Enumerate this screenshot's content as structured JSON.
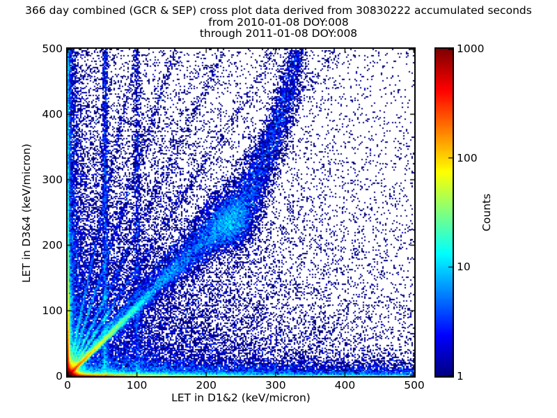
{
  "title": {
    "line1": "366 day combined (GCR & SEP) cross plot data derived from 30830222 accumulated seconds",
    "line2": "from 2010-01-08 DOY:008",
    "line3": "through 2011-01-08 DOY:008"
  },
  "chart_data": {
    "type": "heatmap",
    "subtype": "2d-histogram-density-cross-plot",
    "title": "366 day combined (GCR & SEP) cross plot data derived from 30830222 accumulated seconds",
    "subtitle1": "from 2010-01-08 DOY:008",
    "subtitle2": "through 2011-01-08 DOY:008",
    "xlabel": "LET in D1&2 (keV/micron)",
    "ylabel": "LET in D3&4 (keV/micron)",
    "xlim": [
      0,
      500
    ],
    "ylim": [
      0,
      500
    ],
    "xticks": [
      0,
      100,
      200,
      300,
      400,
      500
    ],
    "yticks": [
      0,
      100,
      200,
      300,
      400,
      500
    ],
    "grid": false,
    "colormap": "jet",
    "background": "#ffffff",
    "point_color_min": "#000080",
    "colorbar": {
      "label": "Counts",
      "scale": "log",
      "min": 1,
      "max": 1000,
      "ticks": [
        1,
        10,
        100,
        1000
      ],
      "position": "right"
    },
    "bins": 250,
    "seed": 20100108,
    "components": [
      {
        "name": "origin-core",
        "kind": "xy",
        "n": 30000,
        "x": {
          "dist": "exp",
          "scale": 4.5
        },
        "y": {
          "dist": "exp",
          "scale": 4.5
        }
      },
      {
        "name": "x-axis-hot-strip",
        "kind": "xy",
        "n": 15000,
        "x": {
          "dist": "exp",
          "scale": 60
        },
        "y": {
          "dist": "exp",
          "scale": 1.2
        }
      },
      {
        "name": "x-axis-thin-line",
        "kind": "xy",
        "n": 2200,
        "x": {
          "dist": "uniform",
          "min": 0,
          "max": 500
        },
        "y": {
          "dist": "exp",
          "scale": 1.0
        }
      },
      {
        "name": "y-axis-hot-strip",
        "kind": "xy",
        "n": 13000,
        "x": {
          "dist": "exp",
          "scale": 1.2
        },
        "y": {
          "dist": "exp",
          "scale": 55
        }
      },
      {
        "name": "y-axis-thin-line",
        "kind": "xy",
        "n": 1400,
        "x": {
          "dist": "exp",
          "scale": 1.0
        },
        "y": {
          "dist": "uniform",
          "min": 0,
          "max": 500
        }
      },
      {
        "name": "bottom-scatter-band",
        "kind": "xy",
        "n": 11000,
        "x": {
          "dist": "pow",
          "max": 500,
          "k": 1.6
        },
        "y": {
          "dist": "exp",
          "scale": 9
        }
      },
      {
        "name": "left-scatter-band",
        "kind": "xy",
        "n": 7000,
        "x": {
          "dist": "exp",
          "scale": 7
        },
        "y": {
          "dist": "pow",
          "max": 500,
          "k": 2.0
        }
      },
      {
        "name": "near-field",
        "kind": "xy",
        "n": 14000,
        "x": {
          "dist": "exp",
          "scale": 140
        },
        "y": {
          "dist": "exp",
          "scale": 140
        }
      },
      {
        "name": "wide-field",
        "kind": "xy",
        "n": 12000,
        "x": {
          "dist": "exp",
          "scale": 260
        },
        "y": {
          "dist": "exp",
          "scale": 260
        }
      },
      {
        "name": "uniform-speckle",
        "kind": "xy",
        "n": 2600,
        "x": {
          "dist": "uniform",
          "min": 0,
          "max": 500
        },
        "y": {
          "dist": "uniform",
          "min": 0,
          "max": 500
        }
      },
      {
        "name": "proton-diagonal",
        "kind": "ray",
        "n": 15000,
        "slope": 1.06,
        "t": {
          "dist": "exp",
          "scale": 42
        },
        "xj0": 0.4,
        "xjk": 0.0,
        "yj0": 1.1,
        "yjk": 0.035
      },
      {
        "name": "fan-ray-1",
        "kind": "ray",
        "n": 3000,
        "slope": 1.28,
        "t": {
          "dist": "mix",
          "parts": [
            {
              "w": 0.75,
              "dist": "exp",
              "scale": 30
            },
            {
              "w": 0.25,
              "dist": "uniform",
              "min": 0,
              "max": 390
            }
          ]
        },
        "xj0": 0.5,
        "xjk": 0.004,
        "yj0": 1.0,
        "yjk": 0.03
      },
      {
        "name": "fan-ray-2",
        "kind": "ray",
        "n": 2500,
        "slope": 1.65,
        "t": {
          "dist": "mix",
          "parts": [
            {
              "w": 0.75,
              "dist": "exp",
              "scale": 27
            },
            {
              "w": 0.25,
              "dist": "uniform",
              "min": 0,
              "max": 300
            }
          ]
        },
        "xj0": 0.5,
        "xjk": 0.005,
        "yj0": 1.0,
        "yjk": 0.035
      },
      {
        "name": "fan-ray-3",
        "kind": "ray",
        "n": 2100,
        "slope": 2.2,
        "t": {
          "dist": "mix",
          "parts": [
            {
              "w": 0.72,
              "dist": "exp",
              "scale": 24
            },
            {
              "w": 0.28,
              "dist": "uniform",
              "min": 0,
              "max": 227
            }
          ]
        },
        "xj0": 0.6,
        "xjk": 0.006,
        "yj0": 1.1,
        "yjk": 0.04
      },
      {
        "name": "fan-ray-4",
        "kind": "ray",
        "n": 1800,
        "slope": 3.2,
        "t": {
          "dist": "mix",
          "parts": [
            {
              "w": 0.7,
              "dist": "exp",
              "scale": 20
            },
            {
              "w": 0.3,
              "dist": "uniform",
              "min": 0,
              "max": 156
            }
          ]
        },
        "xj0": 0.6,
        "xjk": 0.008,
        "yj0": 1.2,
        "yjk": 0.05
      },
      {
        "name": "fan-ray-5",
        "kind": "ray",
        "n": 1600,
        "slope": 5.0,
        "t": {
          "dist": "mix",
          "parts": [
            {
              "w": 0.7,
              "dist": "exp",
              "scale": 16
            },
            {
              "w": 0.3,
              "dist": "uniform",
              "min": 0,
              "max": 100
            }
          ]
        },
        "xj0": 0.7,
        "xjk": 0.01,
        "yj0": 1.3,
        "yjk": 0.06
      },
      {
        "name": "vertical-streak-a",
        "kind": "xy",
        "n": 2400,
        "x": {
          "dist": "gauss",
          "mean": 54,
          "sd": 2.2
        },
        "y": {
          "dist": "pow",
          "max": 500,
          "k": 1.5
        }
      },
      {
        "name": "vertical-streak-b",
        "kind": "xy",
        "n": 1300,
        "x": {
          "dist": "gauss",
          "mean": 100,
          "sd": 2.8
        },
        "y": {
          "dist": "pow",
          "max": 500,
          "k": 1.4
        }
      },
      {
        "name": "heavy-ion-band",
        "kind": "path",
        "points": [
          [
            60,
            64
          ],
          [
            140,
            149
          ],
          [
            200,
            207
          ],
          [
            238,
            240
          ],
          [
            268,
            292
          ],
          [
            298,
            365
          ],
          [
            318,
            437
          ],
          [
            330,
            500
          ]
        ],
        "segn": [
          1600,
          2300,
          2600,
          1900,
          1500,
          1100,
          700
        ],
        "sigma": [
          5,
          9,
          14,
          16,
          13,
          11,
          9,
          8
        ]
      },
      {
        "name": "iron-peak-blob",
        "kind": "xy",
        "n": 2300,
        "x": {
          "dist": "gauss",
          "mean": 238,
          "sd": 17
        },
        "y": {
          "dist": "gauss",
          "mean": 237,
          "sd": 21
        }
      }
    ]
  },
  "colors": {
    "background": "#ffffff",
    "frame": "#000000",
    "text": "#000000"
  }
}
